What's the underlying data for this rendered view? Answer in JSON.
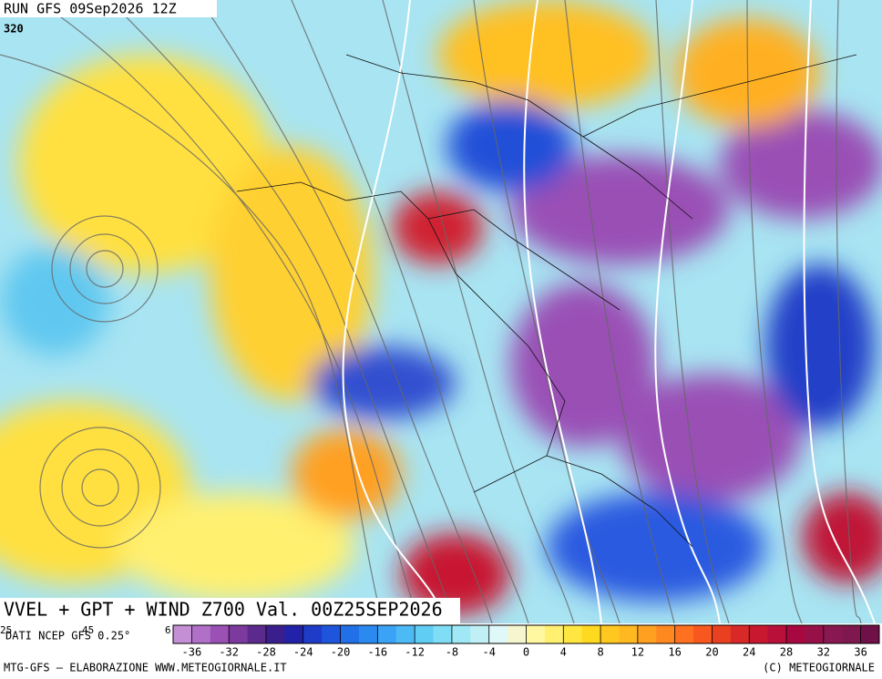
{
  "header": {
    "run": "RUN GFS 09Sep2026 12Z",
    "level": "320"
  },
  "map_title": "VVEL + GPT + WIND Z700 Val. 00Z25SEP2026",
  "source": "DATI NCEP GFS 0.25°",
  "lon_labels": [
    "25",
    "45",
    "6"
  ],
  "colorbar": {
    "range": [
      -38,
      38
    ],
    "ticks": [
      -36,
      -32,
      -28,
      -24,
      -20,
      -16,
      -12,
      -8,
      -4,
      0,
      4,
      8,
      12,
      16,
      20,
      24,
      28,
      32,
      36
    ],
    "colors": [
      "#c58fd6",
      "#b070c8",
      "#9a50b5",
      "#7d3a9e",
      "#5c2a8c",
      "#3a1f8c",
      "#2222a8",
      "#1f3cc8",
      "#1f55dd",
      "#2170e8",
      "#2a8af0",
      "#3aa3f5",
      "#4cbaf5",
      "#60cdf5",
      "#7fddf5",
      "#a0e8f5",
      "#c0f0f5",
      "#e0f8f8",
      "#f5f5d0",
      "#fff8a0",
      "#fff070",
      "#ffe640",
      "#ffd820",
      "#ffc820",
      "#ffb820",
      "#ffa020",
      "#ff8820",
      "#ff7020",
      "#f85820",
      "#e84020",
      "#d82828",
      "#c81830",
      "#b81038",
      "#a80840",
      "#981048",
      "#881850",
      "#801850",
      "#701048"
    ]
  },
  "footer": {
    "left": "MTG-GFS — ELABORAZIONE WWW.METEOGIORNALE.IT",
    "right": "(C) METEOGIORNALE"
  }
}
